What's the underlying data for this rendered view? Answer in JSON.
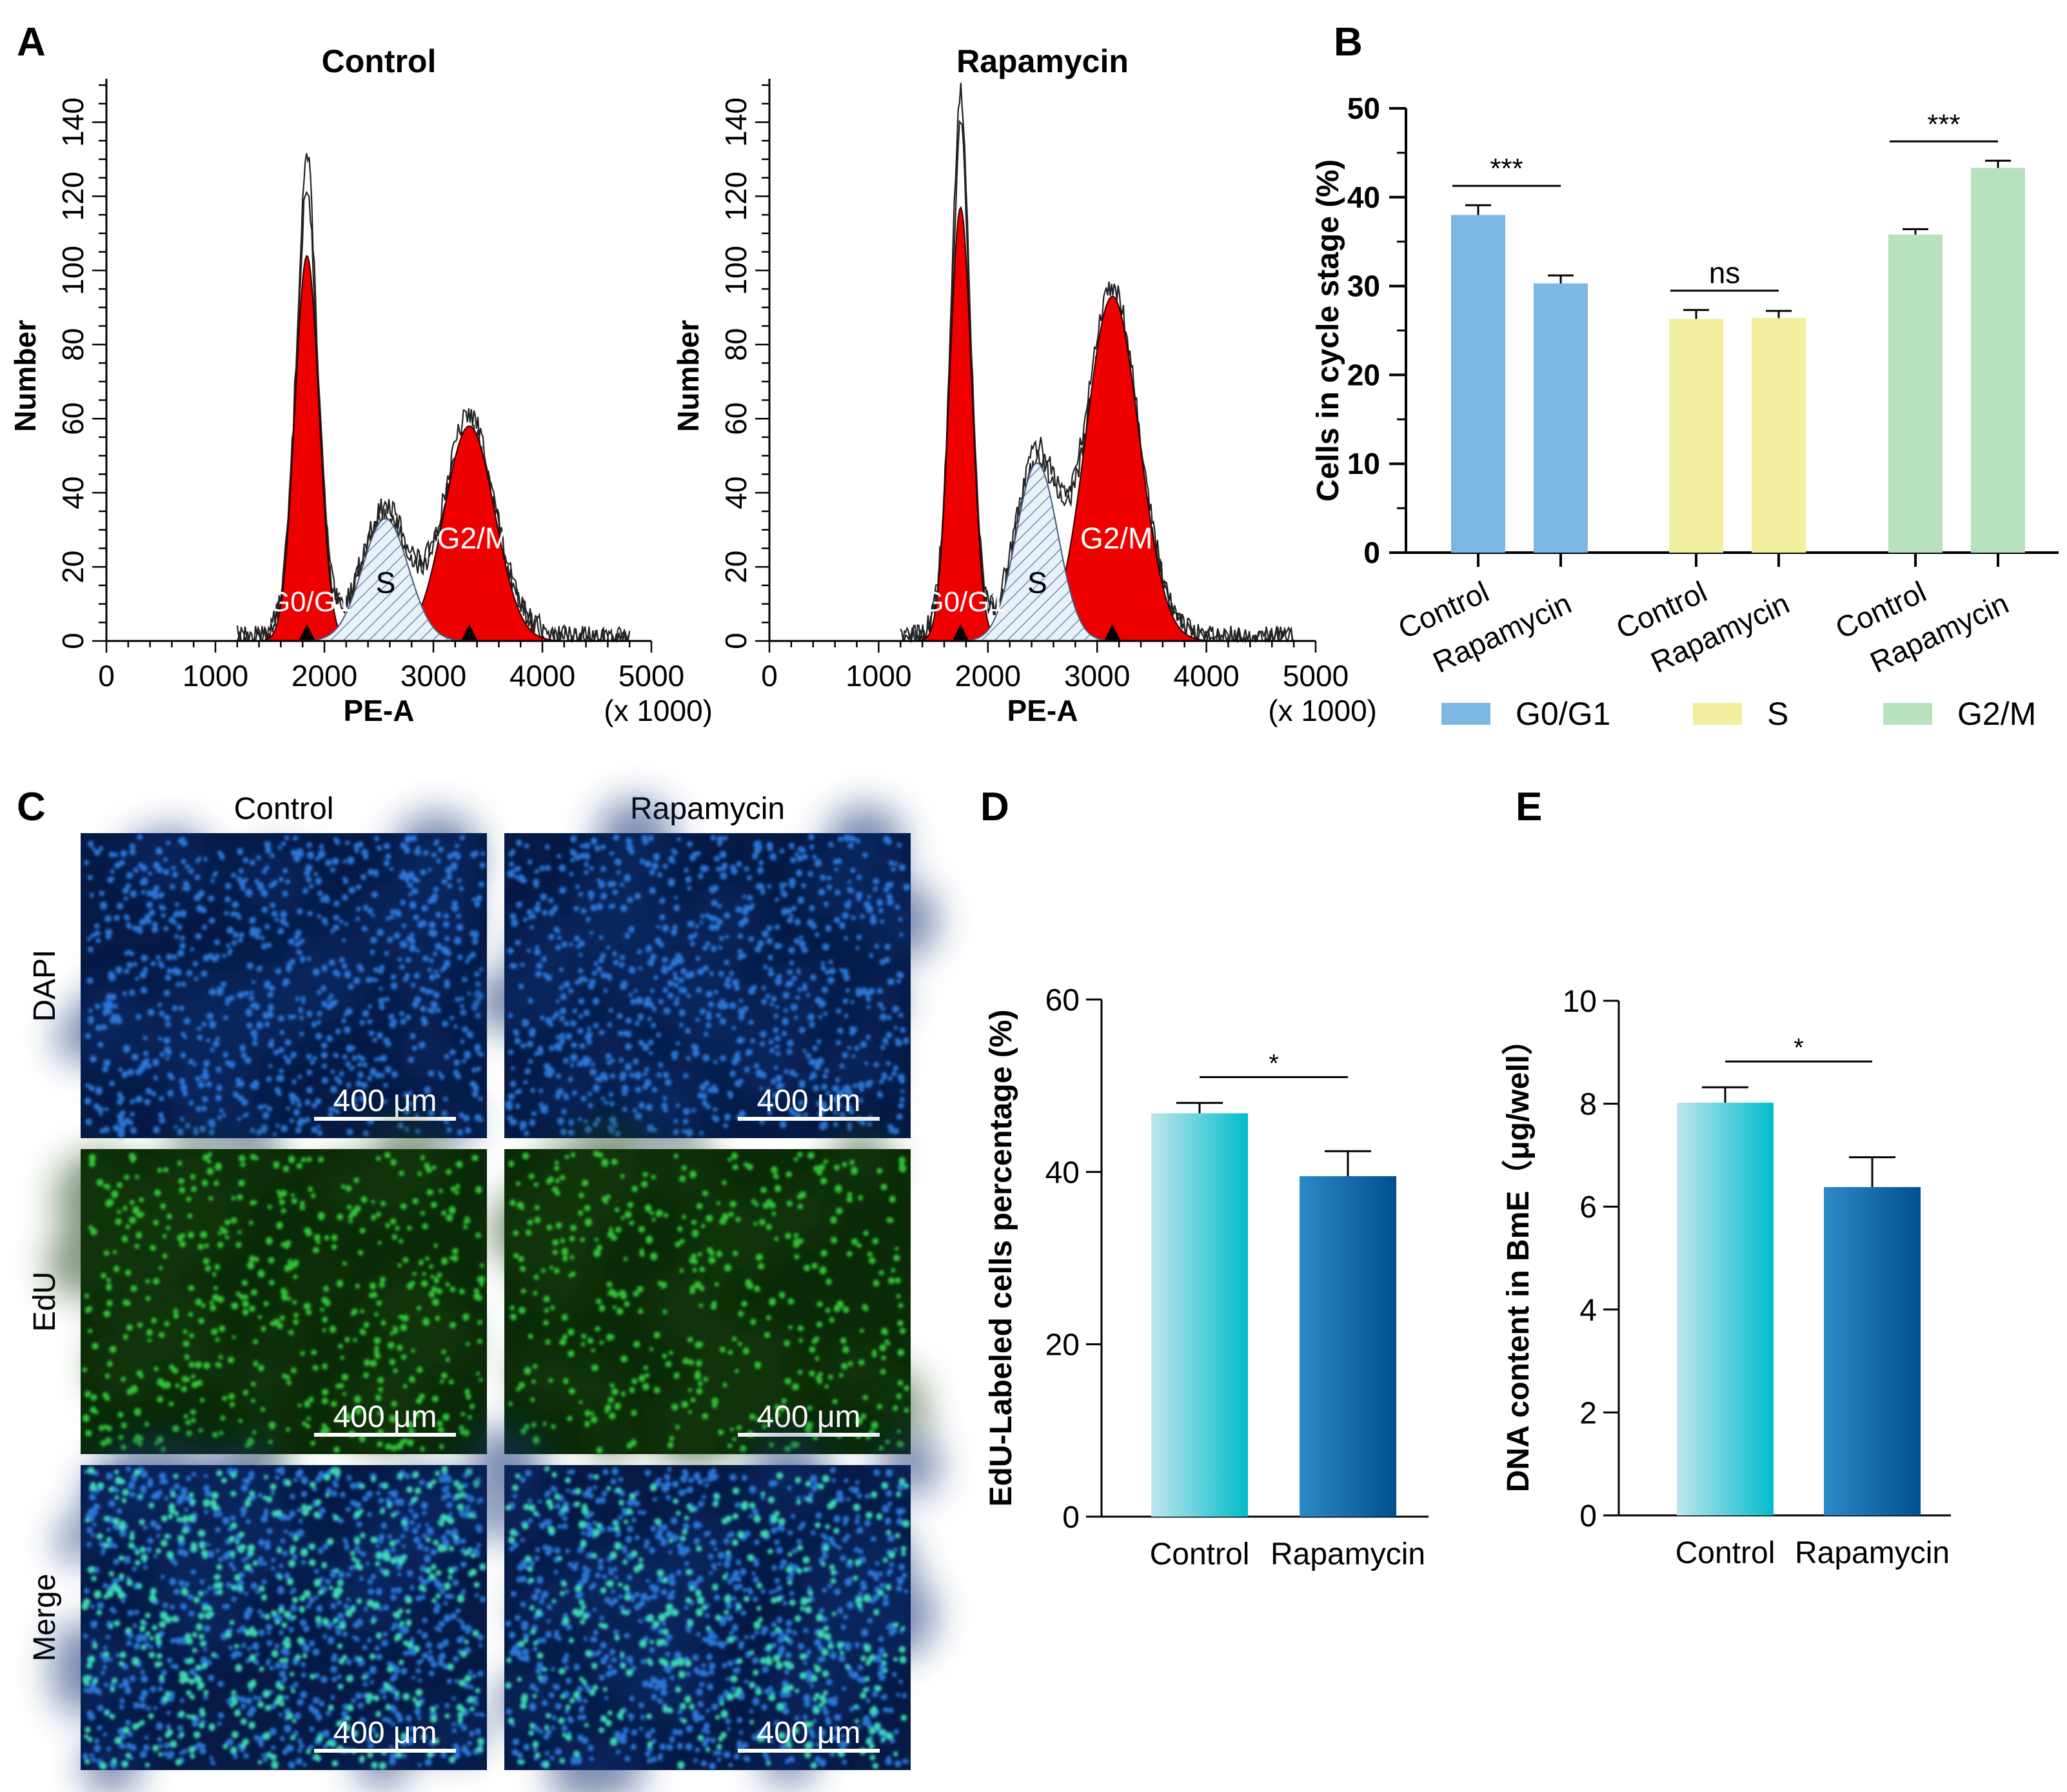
{
  "panel_letters": {
    "a": "A",
    "b": "B",
    "c": "C",
    "d": "D",
    "e": "E"
  },
  "chart_data": [
    {
      "id": "A-control",
      "type": "area",
      "title": "Control",
      "xlabel": "PE-A",
      "x_unit": "(x 1000)",
      "ylabel": "Number",
      "xlim": [
        0,
        5000
      ],
      "ylim": [
        0,
        150
      ],
      "x_ticks": [
        0,
        1000,
        2000,
        3000,
        4000,
        5000
      ],
      "y_ticks": [
        0,
        20,
        40,
        60,
        80,
        100,
        120,
        140
      ],
      "peaks": [
        {
          "name": "G0/G1",
          "label": "G0/G1",
          "center": 1840,
          "height": 104,
          "sd": 110
        },
        {
          "name": "S",
          "label": "S",
          "center": 2560,
          "height": 33,
          "sd": 210
        },
        {
          "name": "G2/M",
          "label": "G2/M",
          "center": 3330,
          "height": 58,
          "sd": 230
        }
      ],
      "markers": [
        1840,
        3330
      ],
      "histogram_max": 128
    },
    {
      "id": "A-rapamycin",
      "type": "area",
      "title": "Rapamycin",
      "xlabel": "PE-A",
      "x_unit": "(x 1000)",
      "ylabel": "Number",
      "xlim": [
        0,
        5000
      ],
      "ylim": [
        0,
        150
      ],
      "x_ticks": [
        0,
        1000,
        2000,
        3000,
        4000,
        5000
      ],
      "y_ticks": [
        0,
        20,
        40,
        60,
        80,
        100,
        120,
        140
      ],
      "peaks": [
        {
          "name": "G0/G1",
          "label": "G0/G1",
          "center": 1750,
          "height": 117,
          "sd": 100
        },
        {
          "name": "S",
          "label": "S",
          "center": 2450,
          "height": 48,
          "sd": 190
        },
        {
          "name": "G2/M",
          "label": "G2/M",
          "center": 3140,
          "height": 93,
          "sd": 240
        }
      ],
      "markers": [
        1750,
        3140
      ],
      "histogram_max": 146
    },
    {
      "id": "B",
      "type": "bar",
      "ylabel": "Cells in cycle stage (%)",
      "ylim": [
        0,
        50
      ],
      "y_ticks": [
        0,
        10,
        20,
        30,
        40,
        50
      ],
      "categories": [
        "Control",
        "Rapamycin"
      ],
      "series": [
        {
          "name": "G0/G1",
          "color": "#7cb6e2",
          "values": [
            38,
            30.3
          ],
          "errors": [
            1.1,
            0.9
          ],
          "sig": "***"
        },
        {
          "name": "S",
          "color": "#f2f09e",
          "values": [
            26.3,
            26.4
          ],
          "errors": [
            1.0,
            0.8
          ],
          "sig": "ns"
        },
        {
          "name": "G2/M",
          "color": "#b8e2bd",
          "values": [
            35.8,
            43.3
          ],
          "errors": [
            0.6,
            0.8
          ],
          "sig": "***"
        }
      ],
      "legend": [
        "G0/G1",
        "S",
        "G2/M"
      ]
    },
    {
      "id": "D",
      "type": "bar",
      "ylabel": "EdU-Labeled cells percentage (%)",
      "ylim": [
        0,
        60
      ],
      "y_ticks": [
        0,
        20,
        40,
        60
      ],
      "categories": [
        "Control",
        "Rapamycin"
      ],
      "values": [
        46.8,
        39.5
      ],
      "errors": [
        1.2,
        2.9
      ],
      "sig": "*"
    },
    {
      "id": "E",
      "type": "bar",
      "ylabel": "DNA content in BmE（μg/well）",
      "ylim": [
        0,
        10
      ],
      "y_ticks": [
        0,
        2,
        4,
        6,
        8,
        10
      ],
      "categories": [
        "Control",
        "Rapamycin"
      ],
      "values": [
        8.02,
        6.38
      ],
      "errors": [
        0.3,
        0.58
      ],
      "sig": "*"
    }
  ],
  "panel_c": {
    "columns": [
      "Control",
      "Rapamycin"
    ],
    "rows": [
      {
        "label": "DAPI",
        "stain": "dapi"
      },
      {
        "label": "EdU",
        "stain": "edu"
      },
      {
        "label": "Merge",
        "stain": "merge"
      }
    ],
    "scale_bar": "400 μm",
    "colors": {
      "background": "#061a45",
      "dapi": "#2f7fe6",
      "edu": "#33d43a",
      "merge": "#3ee0b4"
    }
  }
}
